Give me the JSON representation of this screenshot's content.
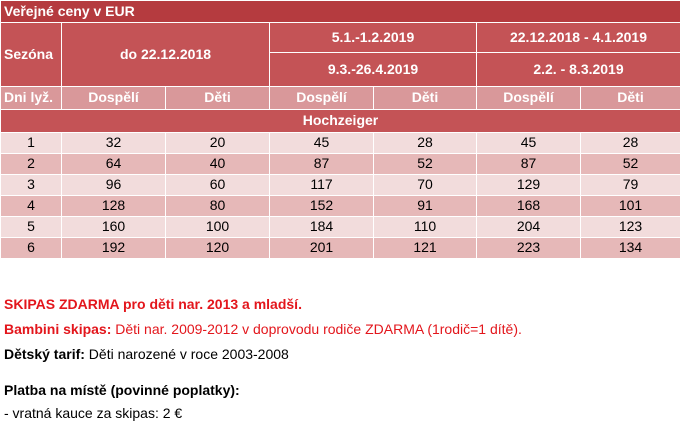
{
  "table": {
    "title": "Veřejné ceny v EUR",
    "season_label": "Sezóna",
    "seasons": {
      "s1": "do 22.12.2018",
      "s2_line1": "5.1.-1.2.2019",
      "s2_line2": "9.3.-26.4.2019",
      "s3_line1": "22.12.2018 - 4.1.2019",
      "s3_line2": "2.2. - 8.3.2019"
    },
    "sub_headers": [
      "Dni lyž.",
      "Dospělí",
      "Děti",
      "Dospělí",
      "Děti",
      "Dospělí",
      "Děti"
    ],
    "region": "Hochzeiger",
    "rows": [
      [
        "1",
        "32",
        "20",
        "45",
        "28",
        "45",
        "28"
      ],
      [
        "2",
        "64",
        "40",
        "87",
        "52",
        "87",
        "52"
      ],
      [
        "3",
        "96",
        "60",
        "117",
        "70",
        "129",
        "79"
      ],
      [
        "4",
        "128",
        "80",
        "152",
        "91",
        "168",
        "101"
      ],
      [
        "5",
        "160",
        "100",
        "184",
        "110",
        "204",
        "123"
      ],
      [
        "6",
        "192",
        "120",
        "201",
        "121",
        "223",
        "134"
      ]
    ]
  },
  "notes": {
    "skipas_free": "SKIPAS ZDARMA pro děti nar. 2013 a mladší.",
    "bambini_label": "Bambini skipas:",
    "bambini_text": " Děti nar. 2009-2012 v doprovodu rodiče ZDARMA (1rodič=1 dítě).",
    "child_tariff_label": "Dětský tarif:",
    "child_tariff_text": " Děti narozené v roce 2003-2008",
    "payment_heading": "Platba na místě (povinné poplatky):",
    "deposit": "- vratná kauce za skipas: 2 €"
  },
  "colors": {
    "title_bg": "#b53b3f",
    "header_bg": "#c45356",
    "subheader_bg": "#d9989a",
    "row_light": "#f2dcdc",
    "row_dark": "#e6b8b8",
    "note_red": "#e3161c"
  }
}
